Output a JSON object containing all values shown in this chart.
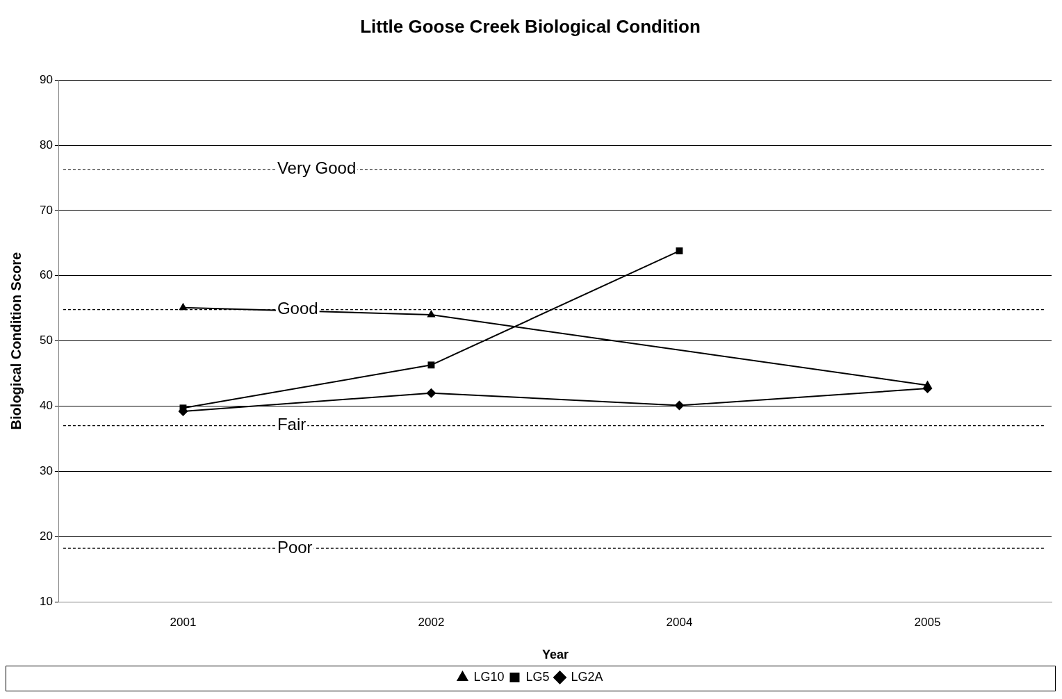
{
  "chart_data": {
    "type": "line",
    "title": "Little Goose Creek Biological Condition",
    "xlabel": "Year",
    "ylabel": "Biological Condition Score",
    "categories": [
      "2001",
      "2002",
      "2004",
      "2005"
    ],
    "series": [
      {
        "name": "LG2A",
        "color": "#000000",
        "marker": "diamond",
        "values": [
          39.2,
          42.0,
          40.1,
          42.7
        ]
      },
      {
        "name": "LG5",
        "color": "#000000",
        "marker": "square",
        "values": [
          39.7,
          46.3,
          63.8,
          null
        ]
      },
      {
        "name": "LG10",
        "color": "#000000",
        "marker": "triangle",
        "values": [
          55.1,
          54.0,
          null,
          43.2
        ]
      }
    ],
    "ylim": [
      10,
      90
    ],
    "yticks": [
      10,
      20,
      30,
      40,
      50,
      60,
      70,
      80,
      90
    ],
    "grid": "y",
    "legend": "bottom",
    "line_style": "solid",
    "ref_lines": [
      {
        "axis": "y",
        "value": 76.3,
        "label": "Very Good",
        "line_style": "dashed",
        "color": "#000000"
      },
      {
        "axis": "y",
        "value": 54.8,
        "label": "Good",
        "line_style": "dashed",
        "color": "#000000"
      },
      {
        "axis": "y",
        "value": 37.0,
        "label": "Fair",
        "line_style": "dashed",
        "color": "#000000"
      },
      {
        "axis": "y",
        "value": 18.2,
        "label": "Poor",
        "line_style": "dashed",
        "color": "#000000"
      }
    ]
  }
}
